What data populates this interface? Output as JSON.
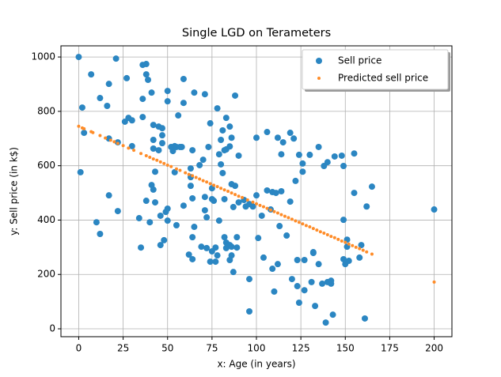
{
  "chart_data": {
    "type": "scatter",
    "title": "Single LGD on Terameters",
    "xlabel": "x: Age (in years)",
    "ylabel": "y: Sell price (in k$)",
    "xlim": [
      -10,
      210
    ],
    "ylim": [
      -29,
      1041
    ],
    "xticks": [
      0,
      25,
      50,
      75,
      100,
      125,
      150,
      175,
      200
    ],
    "yticks": [
      0,
      200,
      400,
      600,
      800,
      1000
    ],
    "grid": true,
    "legend": "upper right",
    "series": [
      {
        "name": "Sell price",
        "color": "#2b86c2",
        "size": 4,
        "x": [
          0,
          1,
          2,
          3,
          7,
          12,
          10,
          12,
          16,
          17,
          17,
          21,
          22,
          17,
          22,
          26,
          27,
          28,
          30,
          30,
          34,
          35,
          36,
          38,
          36,
          36,
          38,
          39,
          40,
          38,
          41,
          42,
          41,
          42,
          42,
          42,
          43,
          43,
          45,
          45,
          47,
          47,
          47,
          46,
          46,
          48,
          49,
          50,
          50,
          50,
          50,
          53,
          52,
          54,
          55,
          54,
          56,
          57,
          58,
          59,
          59,
          59,
          55,
          62,
          63,
          63,
          63,
          64,
          64,
          65,
          64,
          64,
          65,
          68,
          69,
          70,
          71,
          71,
          71,
          72,
          72,
          74,
          73,
          74,
          75,
          77,
          77,
          78,
          75,
          75,
          76,
          78,
          79,
          79,
          80,
          81,
          80,
          81,
          82,
          82,
          82,
          83,
          83,
          83,
          83,
          85,
          85,
          86,
          85,
          86,
          85,
          86,
          87,
          87,
          86,
          88,
          88,
          89,
          89,
          90,
          90,
          93,
          94,
          96,
          96,
          96,
          98,
          100,
          101,
          100,
          103,
          106,
          106,
          104,
          108,
          109,
          109,
          112,
          111,
          110,
          112,
          114,
          113,
          115,
          114,
          117,
          119,
          119,
          120,
          121,
          122,
          123,
          123,
          124,
          124,
          126,
          126,
          127,
          127,
          130,
          132,
          132,
          133,
          131,
          135,
          135,
          137,
          138,
          139,
          140,
          140,
          142,
          142,
          143,
          144,
          148,
          149,
          149,
          149,
          151,
          152,
          151,
          155,
          155,
          158,
          159,
          161,
          162,
          165,
          200,
          150
        ],
        "values": [
          1000,
          576,
          814,
          721,
          936,
          849,
          392,
          349,
          820,
          901,
          491,
          994,
          433,
          700,
          686,
          762,
          922,
          776,
          767,
          672,
          407,
          299,
          971,
          974,
          846,
          779,
          936,
          916,
          392,
          471,
          529,
          512,
          869,
          750,
          695,
          663,
          578,
          465,
          744,
          657,
          738,
          712,
          683,
          416,
          308,
          326,
          430,
          442,
          398,
          875,
          837,
          654,
          669,
          672,
          669,
          576,
          785,
          669,
          669,
          919,
          831,
          453,
          381,
          273,
          590,
          558,
          526,
          256,
          337,
          869,
          657,
          480,
          375,
          602,
          302,
          622,
          863,
          436,
          485,
          297,
          410,
          756,
          669,
          247,
          285,
          299,
          247,
          270,
          517,
          477,
          471,
          811,
          642,
          398,
          695,
          730,
          605,
          573,
          657,
          477,
          337,
          297,
          776,
          660,
          317,
          308,
          253,
          270,
          744,
          703,
          671,
          532,
          448,
          209,
          302,
          858,
          526,
          337,
          299,
          637,
          465,
          474,
          450,
          459,
          64,
          183,
          450,
          703,
          334,
          491,
          416,
          724,
          509,
          262,
          439,
          221,
          503,
          703,
          500,
          137,
          238,
          506,
          378,
          686,
          642,
          343,
          468,
          721,
          183,
          700,
          544,
          253,
          157,
          96,
          640,
          578,
          608,
          142,
          253,
          640,
          279,
          282,
          84,
          172,
          669,
          238,
          166,
          599,
          23,
          172,
          613,
          177,
          166,
          52,
          634,
          637,
          599,
          401,
          256,
          328,
          250,
          302,
          500,
          645,
          262,
          308,
          38,
          450,
          523,
          439,
          238
        ]
      },
      {
        "name": "Predicted sell price",
        "color": "#ff8c28",
        "size": 2,
        "x": [
          0,
          2,
          3,
          7,
          8,
          12,
          15,
          18,
          20,
          22,
          25,
          28,
          31,
          35,
          38,
          40,
          42,
          44,
          46,
          48,
          50,
          52,
          55,
          57,
          60,
          62,
          64,
          66,
          68,
          70,
          72,
          74,
          76,
          78,
          80,
          82,
          84,
          86,
          88,
          90,
          92,
          95,
          98,
          100,
          102,
          104,
          106,
          108,
          110,
          112,
          114,
          116,
          118,
          120,
          122,
          124,
          126,
          128,
          130,
          132,
          134,
          136,
          138,
          140,
          142,
          144,
          146,
          148,
          150,
          152,
          154,
          156,
          158,
          160,
          162,
          165,
          200
        ],
        "values": [
          745,
          739,
          736,
          725,
          722,
          711,
          702,
          694,
          688,
          682,
          674,
          665,
          657,
          645,
          637,
          631,
          625,
          620,
          614,
          608,
          602,
          597,
          588,
          583,
          574,
          568,
          563,
          557,
          551,
          545,
          540,
          534,
          528,
          523,
          517,
          511,
          506,
          500,
          494,
          488,
          483,
          474,
          466,
          460,
          454,
          449,
          443,
          437,
          431,
          426,
          420,
          414,
          409,
          403,
          397,
          392,
          386,
          380,
          375,
          369,
          363,
          357,
          352,
          346,
          340,
          335,
          329,
          323,
          318,
          312,
          306,
          300,
          295,
          289,
          283,
          275,
          172
        ]
      }
    ]
  }
}
